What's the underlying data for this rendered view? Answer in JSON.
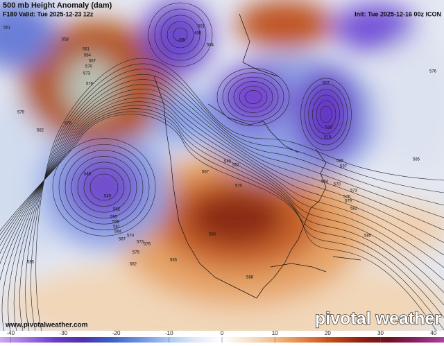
{
  "header": {
    "title": "500 mb Height Anomaly (dam)",
    "valid": "F180 Valid: Tue 2025-12-23 12z",
    "init": "Init: Tue 2025-12-16 00z ICON"
  },
  "footer": {
    "website": "www.pivotalweather.com",
    "brand": "pivotal weather"
  },
  "colorbar": {
    "lim": [
      -42,
      42
    ],
    "ticks": [
      -40,
      -30,
      -20,
      -10,
      0,
      10,
      20,
      30,
      40
    ]
  },
  "contour_labels": [
    561,
    501,
    498,
    495,
    504,
    558,
    561,
    564,
    567,
    570,
    573,
    576,
    579,
    570,
    582,
    546,
    549,
    552,
    555,
    558,
    561,
    564,
    567,
    570,
    573,
    576,
    579,
    582,
    585,
    585,
    588,
    588,
    582,
    585,
    585,
    576,
    564,
    570,
    573,
    576,
    507,
    513,
    519,
    528,
    537,
    549,
    552,
    567,
    570,
    579
  ]
}
